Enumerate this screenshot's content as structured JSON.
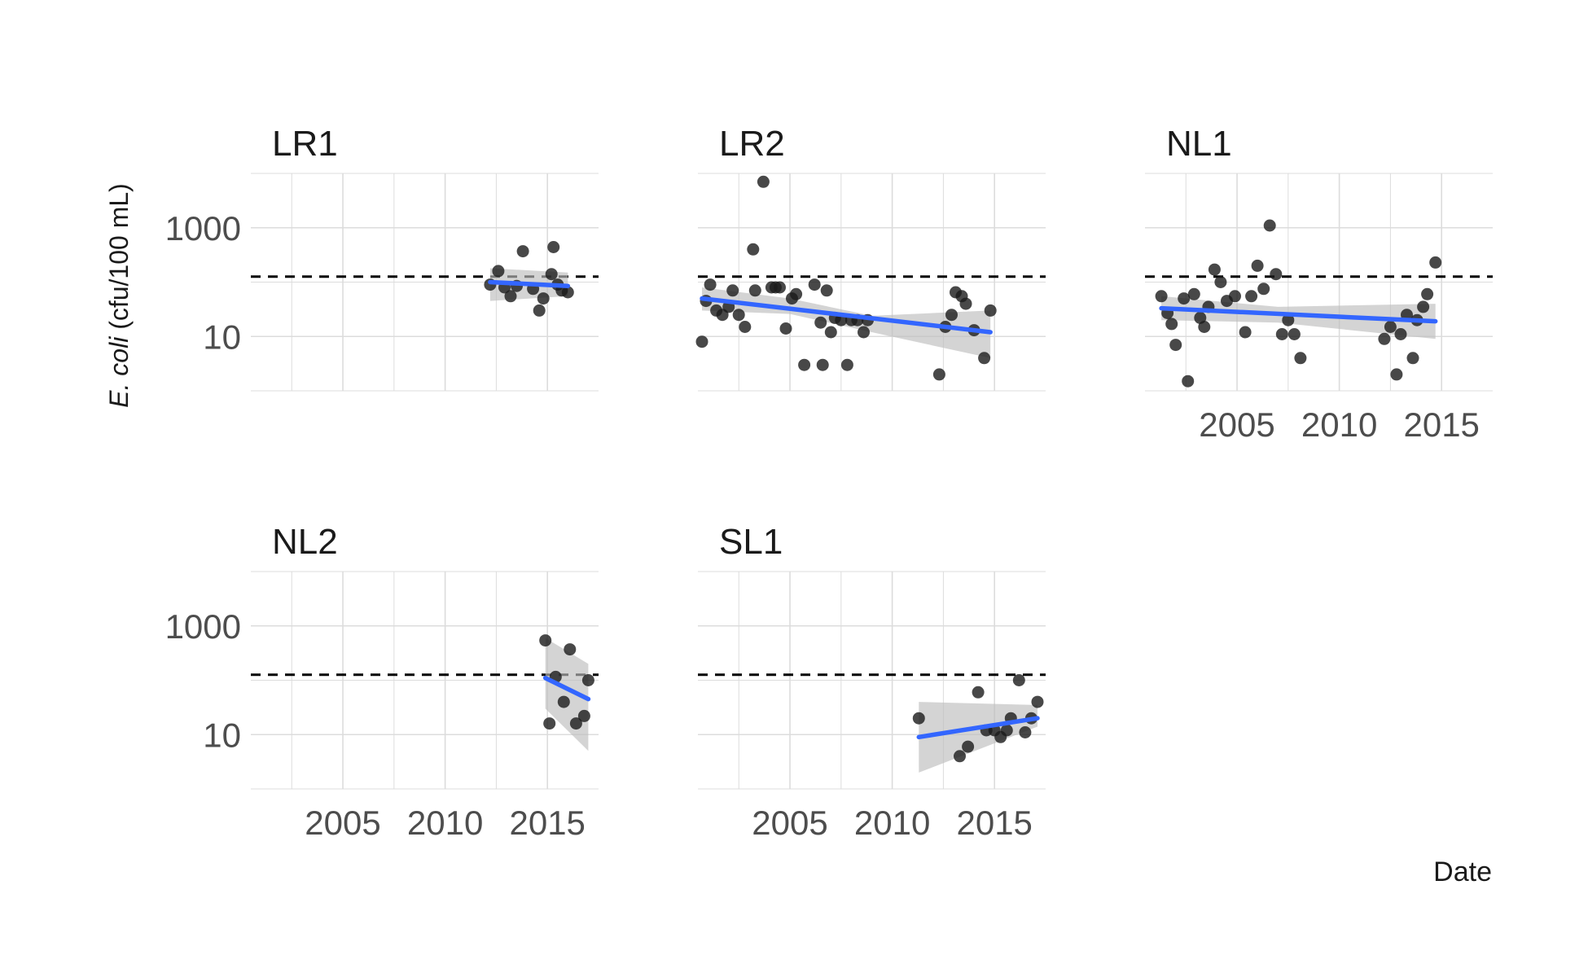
{
  "chart_data": {
    "type": "scatter",
    "facet_layout": {
      "rows": 2,
      "cols": 3
    },
    "xlabel": "Date",
    "ylabel_italic": "E. coli",
    "ylabel_rest": " (cfu/100 mL)",
    "y_scale": "log10",
    "ylim": [
      1,
      10000
    ],
    "y_ticks": [
      10,
      1000
    ],
    "y_tick_labels": [
      "10",
      "1000"
    ],
    "xlim": [
      2000.5,
      2017.5
    ],
    "x_ticks": [
      2005,
      2010,
      2015
    ],
    "x_tick_labels": [
      "2005",
      "2010",
      "2015"
    ],
    "reference_line": {
      "y": 126,
      "style": "dashed",
      "color": "#000000"
    },
    "colors": {
      "points": "#1a1a1a",
      "trend": "#3366ff",
      "ribbon": "#bdbdbd",
      "grid": "#dcdcdc"
    },
    "panels": [
      {
        "name": "LR1",
        "points": [
          [
            2012.2,
            90
          ],
          [
            2012.6,
            160
          ],
          [
            2012.9,
            80
          ],
          [
            2013.2,
            55
          ],
          [
            2013.5,
            85
          ],
          [
            2013.8,
            370
          ],
          [
            2014.3,
            75
          ],
          [
            2014.6,
            30
          ],
          [
            2014.8,
            50
          ],
          [
            2015.2,
            140
          ],
          [
            2015.3,
            440
          ],
          [
            2015.5,
            90
          ],
          [
            2015.7,
            70
          ],
          [
            2016.0,
            65
          ]
        ],
        "trend": {
          "x": [
            2012.2,
            2016.0
          ],
          "y": [
            100,
            85
          ]
        },
        "ribbon": {
          "x": [
            2012.2,
            2016.0
          ],
          "lower": [
            45,
            55
          ],
          "upper": [
            180,
            150
          ]
        }
      },
      {
        "name": "LR2",
        "points": [
          [
            2000.7,
            8
          ],
          [
            2000.9,
            45
          ],
          [
            2001.1,
            90
          ],
          [
            2001.4,
            30
          ],
          [
            2001.7,
            25
          ],
          [
            2002.0,
            35
          ],
          [
            2002.2,
            70
          ],
          [
            2002.5,
            25
          ],
          [
            2002.8,
            15
          ],
          [
            2003.2,
            400
          ],
          [
            2003.3,
            70
          ],
          [
            2003.7,
            7000
          ],
          [
            2004.1,
            80
          ],
          [
            2004.3,
            80
          ],
          [
            2004.5,
            80
          ],
          [
            2004.8,
            14
          ],
          [
            2005.1,
            50
          ],
          [
            2005.3,
            60
          ],
          [
            2005.7,
            3
          ],
          [
            2006.2,
            90
          ],
          [
            2006.5,
            18
          ],
          [
            2006.6,
            3
          ],
          [
            2006.8,
            70
          ],
          [
            2007.0,
            12
          ],
          [
            2007.2,
            22
          ],
          [
            2007.5,
            20
          ],
          [
            2007.8,
            3
          ],
          [
            2008.0,
            20
          ],
          [
            2008.3,
            20
          ],
          [
            2008.6,
            12
          ],
          [
            2008.8,
            20
          ],
          [
            2012.3,
            2
          ],
          [
            2012.6,
            15
          ],
          [
            2012.9,
            25
          ],
          [
            2013.1,
            65
          ],
          [
            2013.4,
            55
          ],
          [
            2013.6,
            40
          ],
          [
            2014.0,
            13
          ],
          [
            2014.5,
            4
          ],
          [
            2014.8,
            30
          ]
        ],
        "trend": {
          "x": [
            2000.7,
            2014.8
          ],
          "y": [
            50,
            12
          ]
        },
        "ribbon": {
          "x": [
            2000.7,
            2005.0,
            2009.0,
            2014.8
          ],
          "lower": [
            30,
            26,
            12,
            4
          ],
          "upper": [
            80,
            50,
            24,
            30
          ]
        }
      },
      {
        "name": "NL1",
        "points": [
          [
            2001.3,
            55
          ],
          [
            2001.6,
            27
          ],
          [
            2001.8,
            17
          ],
          [
            2002.0,
            7
          ],
          [
            2002.4,
            50
          ],
          [
            2002.6,
            1.5
          ],
          [
            2002.9,
            60
          ],
          [
            2003.2,
            22
          ],
          [
            2003.4,
            15
          ],
          [
            2003.6,
            35
          ],
          [
            2003.9,
            170
          ],
          [
            2004.2,
            100
          ],
          [
            2004.5,
            45
          ],
          [
            2004.9,
            55
          ],
          [
            2005.4,
            12
          ],
          [
            2005.7,
            55
          ],
          [
            2006.0,
            200
          ],
          [
            2006.3,
            75
          ],
          [
            2006.6,
            1100
          ],
          [
            2006.9,
            140
          ],
          [
            2007.2,
            11
          ],
          [
            2007.5,
            20
          ],
          [
            2007.8,
            11
          ],
          [
            2008.1,
            4
          ],
          [
            2012.2,
            9
          ],
          [
            2012.5,
            15
          ],
          [
            2012.8,
            2
          ],
          [
            2013.0,
            11
          ],
          [
            2013.3,
            25
          ],
          [
            2013.6,
            4
          ],
          [
            2013.8,
            20
          ],
          [
            2014.1,
            35
          ],
          [
            2014.3,
            60
          ],
          [
            2014.7,
            230
          ]
        ],
        "trend": {
          "x": [
            2001.3,
            2014.7
          ],
          "y": [
            33,
            19
          ]
        },
        "ribbon": {
          "x": [
            2001.3,
            2007.0,
            2014.7
          ],
          "lower": [
            20,
            18,
            9
          ],
          "upper": [
            55,
            35,
            40
          ]
        }
      },
      {
        "name": "NL2",
        "points": [
          [
            2014.9,
            540
          ],
          [
            2015.1,
            16
          ],
          [
            2015.4,
            115
          ],
          [
            2015.8,
            40
          ],
          [
            2016.1,
            370
          ],
          [
            2016.4,
            16
          ],
          [
            2016.8,
            22
          ],
          [
            2017.0,
            100
          ]
        ],
        "trend": {
          "x": [
            2014.9,
            2017.0
          ],
          "y": [
            110,
            45
          ]
        },
        "ribbon": {
          "x": [
            2014.9,
            2017.0
          ],
          "lower": [
            30,
            5
          ],
          "upper": [
            600,
            200
          ]
        }
      },
      {
        "name": "SL1",
        "points": [
          [
            2011.3,
            20
          ],
          [
            2013.3,
            4
          ],
          [
            2013.7,
            6
          ],
          [
            2014.2,
            60
          ],
          [
            2014.6,
            12
          ],
          [
            2015.0,
            12
          ],
          [
            2015.3,
            9
          ],
          [
            2015.6,
            12
          ],
          [
            2015.8,
            20
          ],
          [
            2016.2,
            100
          ],
          [
            2016.5,
            11
          ],
          [
            2016.8,
            20
          ],
          [
            2017.1,
            40
          ]
        ],
        "trend": {
          "x": [
            2011.3,
            2017.1
          ],
          "y": [
            9,
            20
          ]
        },
        "ribbon": {
          "x": [
            2011.3,
            2017.1
          ],
          "lower": [
            2,
            14
          ],
          "upper": [
            40,
            35
          ]
        }
      }
    ]
  }
}
